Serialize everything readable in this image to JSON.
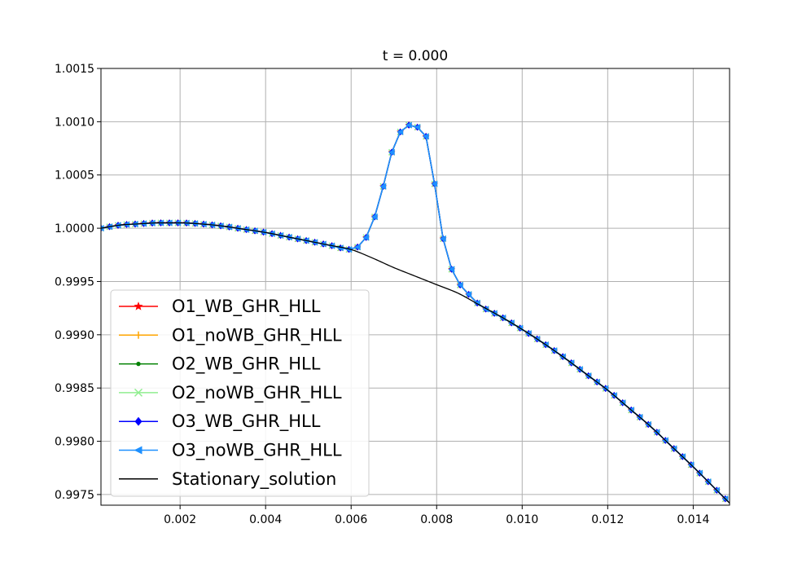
{
  "chart_data": {
    "type": "line",
    "title": "t = 0.000",
    "xlabel": "",
    "ylabel": "",
    "xlim": [
      0.00015,
      0.01485
    ],
    "ylim": [
      0.9974,
      1.0015
    ],
    "xticks": [
      0.002,
      0.004,
      0.006,
      0.008,
      0.01,
      0.012,
      0.014
    ],
    "xtick_labels": [
      "0.002",
      "0.004",
      "0.006",
      "0.008",
      "0.010",
      "0.012",
      "0.014"
    ],
    "yticks": [
      0.9975,
      0.998,
      0.9985,
      0.999,
      0.9995,
      1.0,
      1.0005,
      1.001,
      1.0015
    ],
    "ytick_labels": [
      "0.9975",
      "0.9980",
      "0.9985",
      "0.9990",
      "0.9995",
      "1.0000",
      "1.0005",
      "1.0010",
      "1.0015"
    ],
    "grid": true,
    "legend_position": "lower-left",
    "stationary": {
      "name": "Stationary_solution",
      "color": "#000000",
      "x": [
        0.00015,
        0.0006,
        0.001,
        0.0015,
        0.002,
        0.0025,
        0.003,
        0.0035,
        0.004,
        0.0045,
        0.005,
        0.0055,
        0.006,
        0.0065,
        0.007,
        0.0075,
        0.008,
        0.0085,
        0.009,
        0.0095,
        0.01,
        0.0105,
        0.011,
        0.0115,
        0.012,
        0.0125,
        0.013,
        0.0135,
        0.014,
        0.0145,
        0.01485
      ],
      "y": [
        1.0,
        1.00003,
        1.00004,
        1.00005,
        1.00005,
        1.00004,
        1.00002,
        0.99999,
        0.99996,
        0.99992,
        0.99988,
        0.99984,
        0.9998,
        0.99972,
        0.99963,
        0.99955,
        0.99947,
        0.99939,
        0.99928,
        0.99917,
        0.99905,
        0.99892,
        0.99878,
        0.99863,
        0.99848,
        0.99831,
        0.99814,
        0.99795,
        0.99776,
        0.99756,
        0.99742
      ]
    },
    "numerical": {
      "x": [
        0.00015,
        0.0006,
        0.001,
        0.0015,
        0.002,
        0.0025,
        0.003,
        0.0035,
        0.004,
        0.0045,
        0.005,
        0.0055,
        0.006,
        0.0062,
        0.0064,
        0.0066,
        0.0068,
        0.007,
        0.0072,
        0.0074,
        0.0076,
        0.0078,
        0.008,
        0.0082,
        0.0084,
        0.0086,
        0.0088,
        0.009,
        0.0095,
        0.01,
        0.0105,
        0.011,
        0.0115,
        0.012,
        0.0125,
        0.013,
        0.0135,
        0.014,
        0.0145,
        0.01485
      ],
      "y": [
        1.0,
        1.00003,
        1.00004,
        1.00005,
        1.00005,
        1.00004,
        1.00002,
        0.99999,
        0.99996,
        0.99992,
        0.99988,
        0.99984,
        0.9998,
        0.99984,
        0.99995,
        1.00017,
        1.00047,
        1.00078,
        1.00093,
        1.00097,
        1.00093,
        1.0008,
        1.00028,
        0.9998,
        0.99957,
        0.99944,
        0.99936,
        0.99928,
        0.99917,
        0.99905,
        0.99892,
        0.99878,
        0.99863,
        0.99848,
        0.99831,
        0.99814,
        0.99795,
        0.99776,
        0.99756,
        0.99742
      ]
    },
    "series": [
      {
        "name": "O1_WB_GHR_HLL",
        "color": "#ff0000",
        "marker": "star"
      },
      {
        "name": "O1_noWB_GHR_HLL",
        "color": "#ffa500",
        "marker": "plus"
      },
      {
        "name": "O2_WB_GHR_HLL",
        "color": "#008000",
        "marker": "dot"
      },
      {
        "name": "O2_noWB_GHR_HLL",
        "color": "#90ee90",
        "marker": "x"
      },
      {
        "name": "O3_WB_GHR_HLL",
        "color": "#0000ff",
        "marker": "diamond"
      },
      {
        "name": "O3_noWB_GHR_HLL",
        "color": "#1e90ff",
        "marker": "triangle-left"
      },
      {
        "name": "Stationary_solution",
        "color": "#000000",
        "marker": "none"
      }
    ]
  }
}
